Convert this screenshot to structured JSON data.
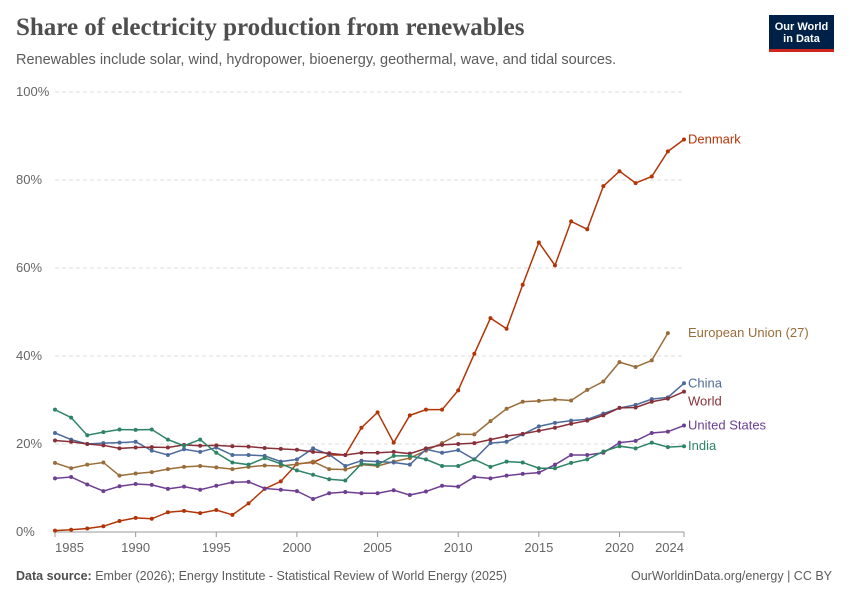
{
  "chart_data": {
    "type": "line",
    "title": "Share of electricity production from renewables",
    "subtitle": "Renewables include solar, wind, hydropower, bioenergy, geothermal, wave, and tidal sources.",
    "logo": [
      "Our World",
      "in Data"
    ],
    "source_label": "Data source:",
    "source_text": "Ember (2026); Energy Institute - Statistical Review of World Energy (2025)",
    "url": "OurWorldinData.org/energy | CC BY",
    "x": [
      1985,
      1986,
      1987,
      1988,
      1989,
      1990,
      1991,
      1992,
      1993,
      1994,
      1995,
      1996,
      1997,
      1998,
      1999,
      2000,
      2001,
      2002,
      2003,
      2004,
      2005,
      2006,
      2007,
      2008,
      2009,
      2010,
      2011,
      2012,
      2013,
      2014,
      2015,
      2016,
      2017,
      2018,
      2019,
      2020,
      2021,
      2022,
      2023,
      2024
    ],
    "xlim": [
      1985,
      2024
    ],
    "xticks": [
      1985,
      1990,
      1995,
      2000,
      2005,
      2010,
      2015,
      2020,
      2024
    ],
    "ylim": [
      0,
      100
    ],
    "yticks": [
      {
        "value": 0,
        "label": "0%"
      },
      {
        "value": 20,
        "label": "20%"
      },
      {
        "value": 40,
        "label": "40%"
      },
      {
        "value": 60,
        "label": "60%"
      },
      {
        "value": 80,
        "label": "80%"
      },
      {
        "value": 100,
        "label": "100%"
      }
    ],
    "grid": true,
    "series": [
      {
        "name": "Denmark",
        "color": "#b13507",
        "values": [
          0.3,
          0.5,
          0.8,
          1.3,
          2.5,
          3.2,
          3.0,
          4.5,
          4.8,
          4.3,
          5.0,
          3.9,
          6.5,
          9.8,
          11.5,
          15.5,
          15.8,
          17.5,
          17.5,
          23.7,
          27.2,
          20.3,
          26.5,
          27.8,
          27.8,
          32.2,
          40.5,
          48.6,
          46.2,
          56.2,
          65.8,
          60.6,
          70.6,
          68.8,
          78.6,
          82.0,
          79.3,
          80.8,
          86.5,
          89.2
        ]
      },
      {
        "name": "European Union (27)",
        "color": "#996d39",
        "values": [
          15.7,
          14.5,
          15.3,
          15.8,
          12.8,
          13.3,
          13.6,
          14.3,
          14.8,
          15.0,
          14.7,
          14.3,
          14.8,
          15.1,
          15.0,
          15.4,
          16.0,
          14.3,
          14.2,
          15.3,
          15.0,
          16.0,
          16.8,
          18.5,
          20.2,
          22.2,
          22.2,
          25.2,
          28.0,
          29.6,
          29.8,
          30.1,
          29.9,
          32.3,
          34.2,
          38.6,
          37.5,
          39.0,
          45.2,
          null
        ]
      },
      {
        "name": "China",
        "color": "#4c6a9c",
        "values": [
          22.5,
          21.0,
          20.0,
          20.2,
          20.3,
          20.5,
          18.5,
          17.5,
          18.8,
          18.2,
          19.2,
          17.5,
          17.5,
          17.3,
          16.0,
          16.5,
          19.0,
          17.6,
          15.0,
          16.2,
          16.0,
          15.8,
          15.3,
          18.8,
          18.0,
          18.6,
          16.5,
          20.2,
          20.5,
          22.2,
          24.0,
          24.8,
          25.3,
          25.6,
          26.9,
          28.2,
          28.9,
          30.2,
          30.6,
          33.8
        ]
      },
      {
        "name": "World",
        "color": "#883039",
        "values": [
          20.8,
          20.5,
          20.0,
          19.7,
          19.0,
          19.2,
          19.3,
          19.2,
          19.8,
          19.6,
          19.7,
          19.5,
          19.4,
          19.1,
          18.9,
          18.7,
          18.2,
          17.9,
          17.5,
          18.0,
          18.0,
          18.2,
          17.8,
          19.0,
          19.8,
          20.0,
          20.2,
          21.0,
          21.8,
          22.3,
          23.0,
          23.7,
          24.6,
          25.3,
          26.5,
          28.2,
          28.3,
          29.6,
          30.3,
          31.9
        ]
      },
      {
        "name": "United States",
        "color": "#6d3e91",
        "values": [
          12.2,
          12.5,
          10.8,
          9.3,
          10.4,
          10.9,
          10.7,
          9.8,
          10.3,
          9.6,
          10.5,
          11.3,
          11.4,
          9.9,
          9.6,
          9.3,
          7.5,
          8.8,
          9.1,
          8.8,
          8.8,
          9.5,
          8.4,
          9.2,
          10.5,
          10.3,
          12.5,
          12.2,
          12.8,
          13.2,
          13.5,
          15.3,
          17.5,
          17.5,
          18.0,
          20.3,
          20.7,
          22.5,
          22.8,
          24.2
        ]
      },
      {
        "name": "India",
        "color": "#2c8465",
        "values": [
          27.8,
          26.0,
          22.0,
          22.7,
          23.3,
          23.2,
          23.3,
          21.0,
          19.6,
          21.0,
          18.0,
          15.8,
          15.3,
          16.8,
          15.5,
          14.0,
          13.0,
          12.0,
          11.7,
          15.5,
          15.3,
          17.3,
          17.3,
          16.5,
          15.0,
          15.0,
          16.5,
          14.8,
          16.0,
          15.8,
          14.5,
          14.5,
          15.7,
          16.5,
          18.3,
          19.5,
          19.0,
          20.3,
          19.3,
          19.5
        ]
      }
    ]
  }
}
